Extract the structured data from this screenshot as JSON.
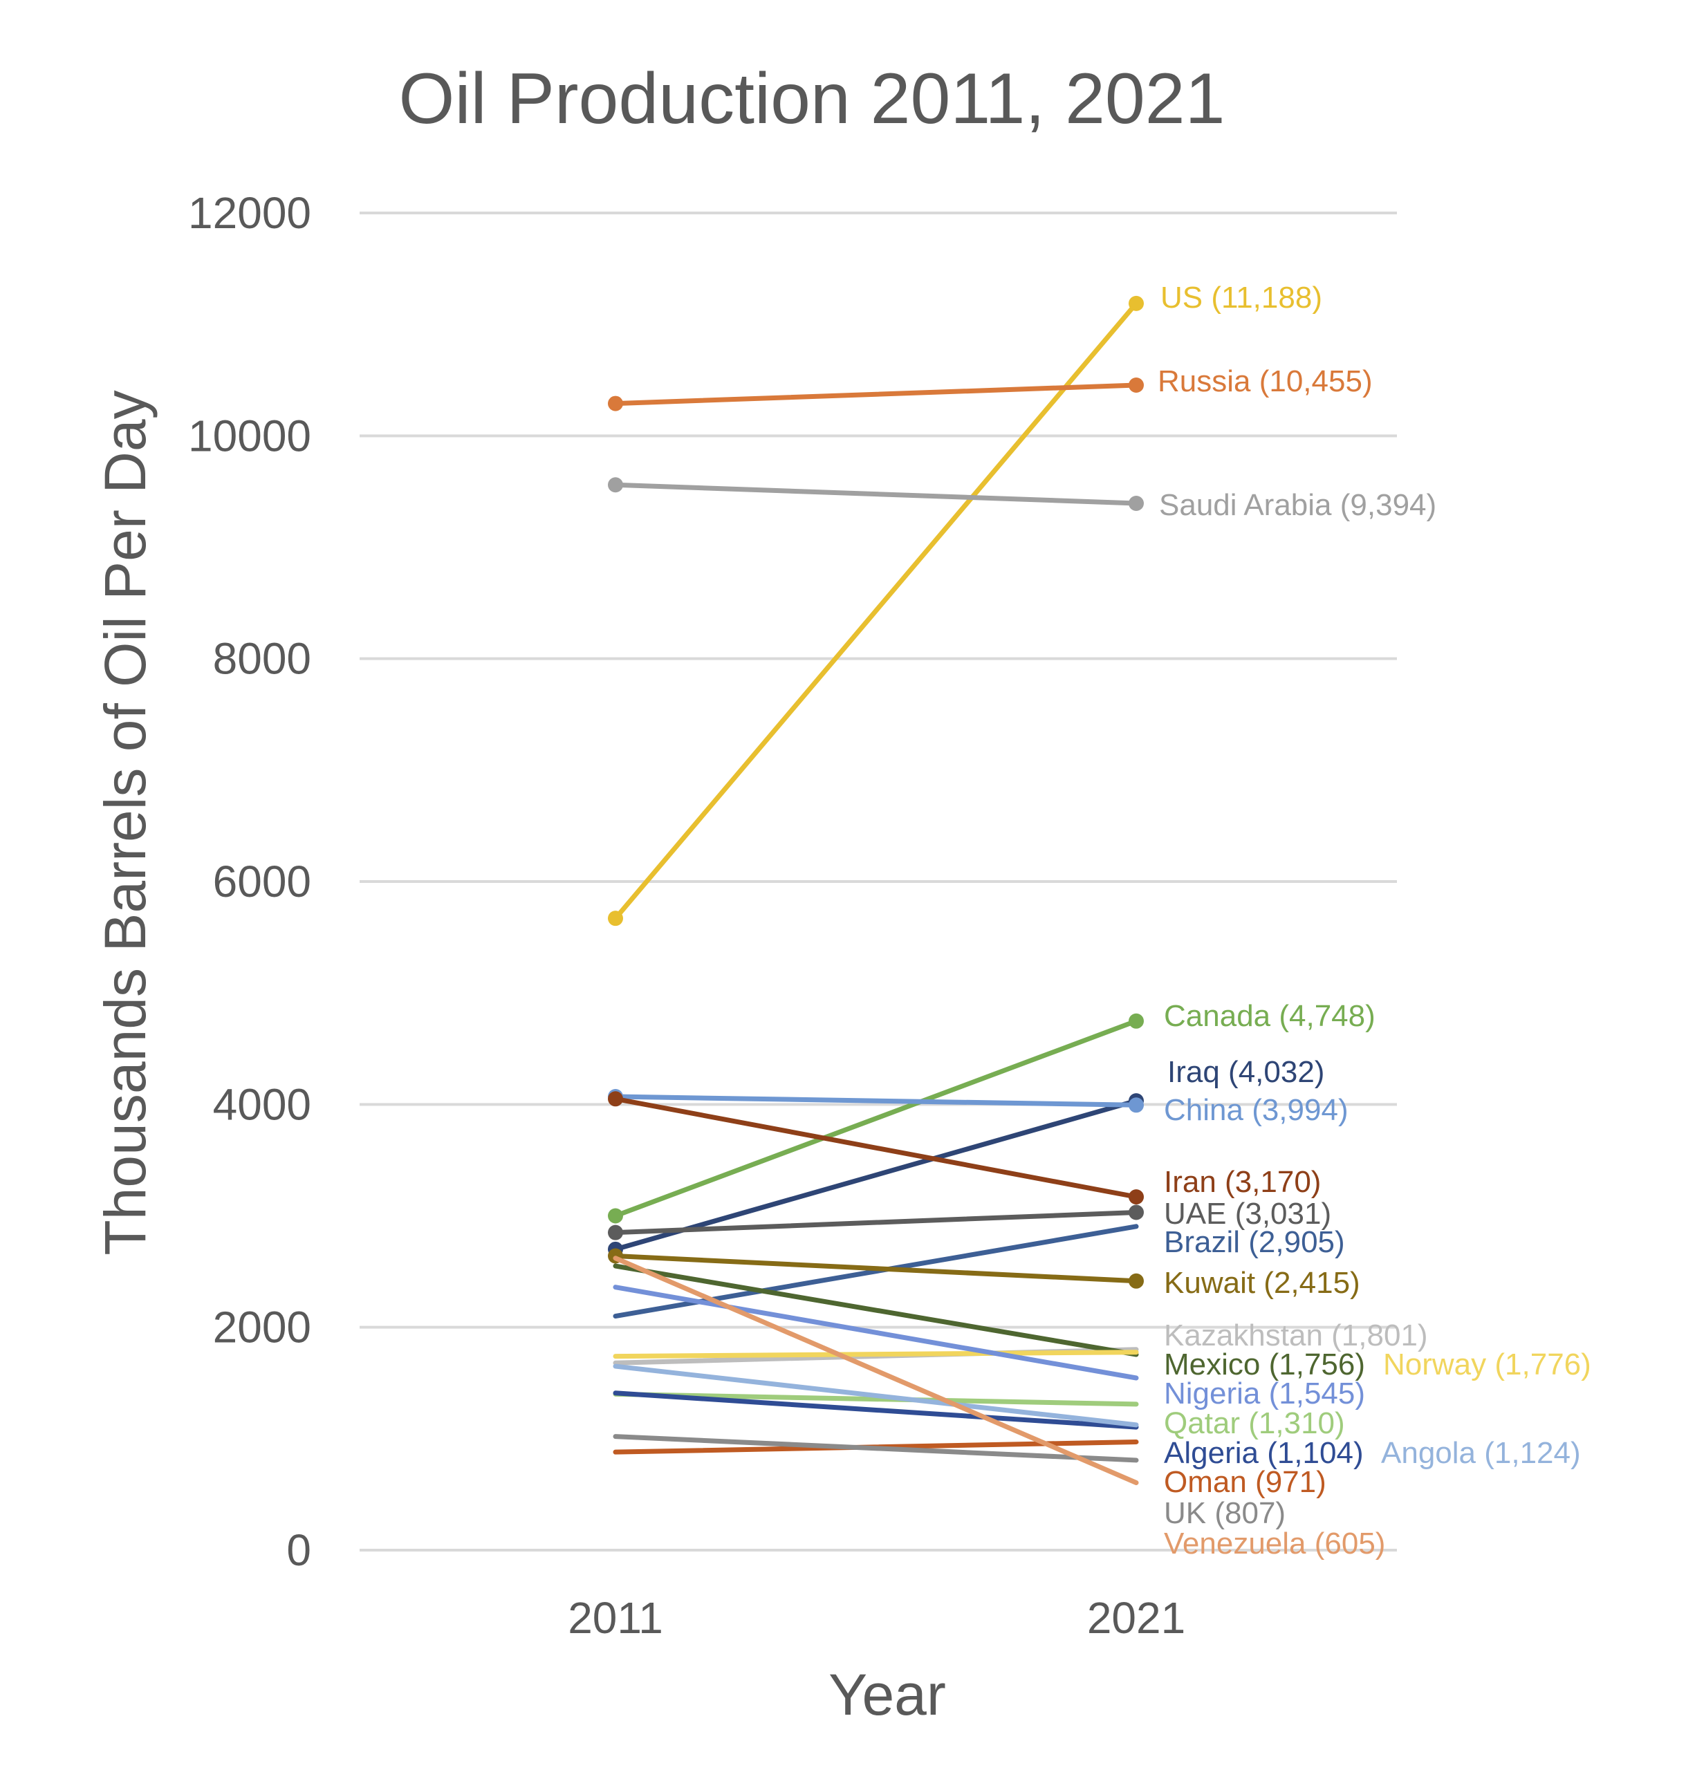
{
  "chart_data": {
    "type": "line",
    "title": "Oil Production 2011, 2021",
    "xlabel": "Year",
    "ylabel": "Thousands Barrels of Oil Per Day",
    "categories": [
      "2011",
      "2021"
    ],
    "ylim": [
      0,
      12000
    ],
    "yticks": [
      "0",
      "2000",
      "4000",
      "6000",
      "8000",
      "10000",
      "12000"
    ],
    "grid": "horizontal",
    "series": [
      {
        "name": "US",
        "values": [
          5670,
          11188
        ],
        "label": "US (11,188)",
        "color": "#E8BF2F",
        "markers": true
      },
      {
        "name": "Russia",
        "values": [
          10290,
          10455
        ],
        "label": "Russia (10,455)",
        "color": "#D9793A",
        "markers": true
      },
      {
        "name": "Saudi Arabia",
        "values": [
          9560,
          9394
        ],
        "label": "Saudi Arabia (9,394)",
        "color": "#A0A0A0",
        "markers": true
      },
      {
        "name": "Canada",
        "values": [
          3000,
          4748
        ],
        "label": "Canada (4,748)",
        "color": "#77AD52",
        "markers": true
      },
      {
        "name": "Iraq",
        "values": [
          2700,
          4032
        ],
        "label": "Iraq (4,032)",
        "color": "#2E4575",
        "markers": true
      },
      {
        "name": "China",
        "values": [
          4070,
          3994
        ],
        "label": "China (3,994)",
        "color": "#6E97D2",
        "markers": true
      },
      {
        "name": "Iran",
        "values": [
          4050,
          3170
        ],
        "label": "Iran (3,170)",
        "color": "#8E3F18",
        "markers": true
      },
      {
        "name": "UAE",
        "values": [
          2850,
          3031
        ],
        "label": "UAE (3,031)",
        "color": "#5C5C5C",
        "markers": true
      },
      {
        "name": "Brazil",
        "values": [
          2100,
          2905
        ],
        "label": "Brazil (2,905)",
        "color": "#3D5F95",
        "markers": false
      },
      {
        "name": "Kuwait",
        "values": [
          2640,
          2415
        ],
        "label": "Kuwait (2,415)",
        "color": "#866B16",
        "markers": true
      },
      {
        "name": "Kazakhstan",
        "values": [
          1680,
          1801
        ],
        "label": "Kazakhstan (1,801)",
        "color": "#BDBDBD",
        "markers": false
      },
      {
        "name": "Mexico",
        "values": [
          2550,
          1756
        ],
        "label": "Mexico (1,756)",
        "color": "#4E6630",
        "markers": false
      },
      {
        "name": "Norway",
        "values": [
          1740,
          1776
        ],
        "label": "Norway (1,776)",
        "color": "#F1D55D",
        "markers": false
      },
      {
        "name": "Nigeria",
        "values": [
          2360,
          1545
        ],
        "label": "Nigeria (1,545)",
        "color": "#7390D8",
        "markers": false
      },
      {
        "name": "Qatar",
        "values": [
          1400,
          1310
        ],
        "label": "Qatar (1,310)",
        "color": "#9FCC7C",
        "markers": false
      },
      {
        "name": "Algeria",
        "values": [
          1410,
          1104
        ],
        "label": "Algeria (1,104)",
        "color": "#2F4C94",
        "markers": false
      },
      {
        "name": "Angola",
        "values": [
          1650,
          1124
        ],
        "label": "Angola (1,124)",
        "color": "#94B3DC",
        "markers": false
      },
      {
        "name": "Oman",
        "values": [
          880,
          971
        ],
        "label": "Oman (971)",
        "color": "#BF5A22",
        "markers": false
      },
      {
        "name": "UK",
        "values": [
          1020,
          807
        ],
        "label": "UK (807)",
        "color": "#8A8A8A",
        "markers": false
      },
      {
        "name": "Venezuela",
        "values": [
          2620,
          605
        ],
        "label": "Venezuela (605)",
        "color": "#E29A6A",
        "markers": false
      }
    ]
  }
}
